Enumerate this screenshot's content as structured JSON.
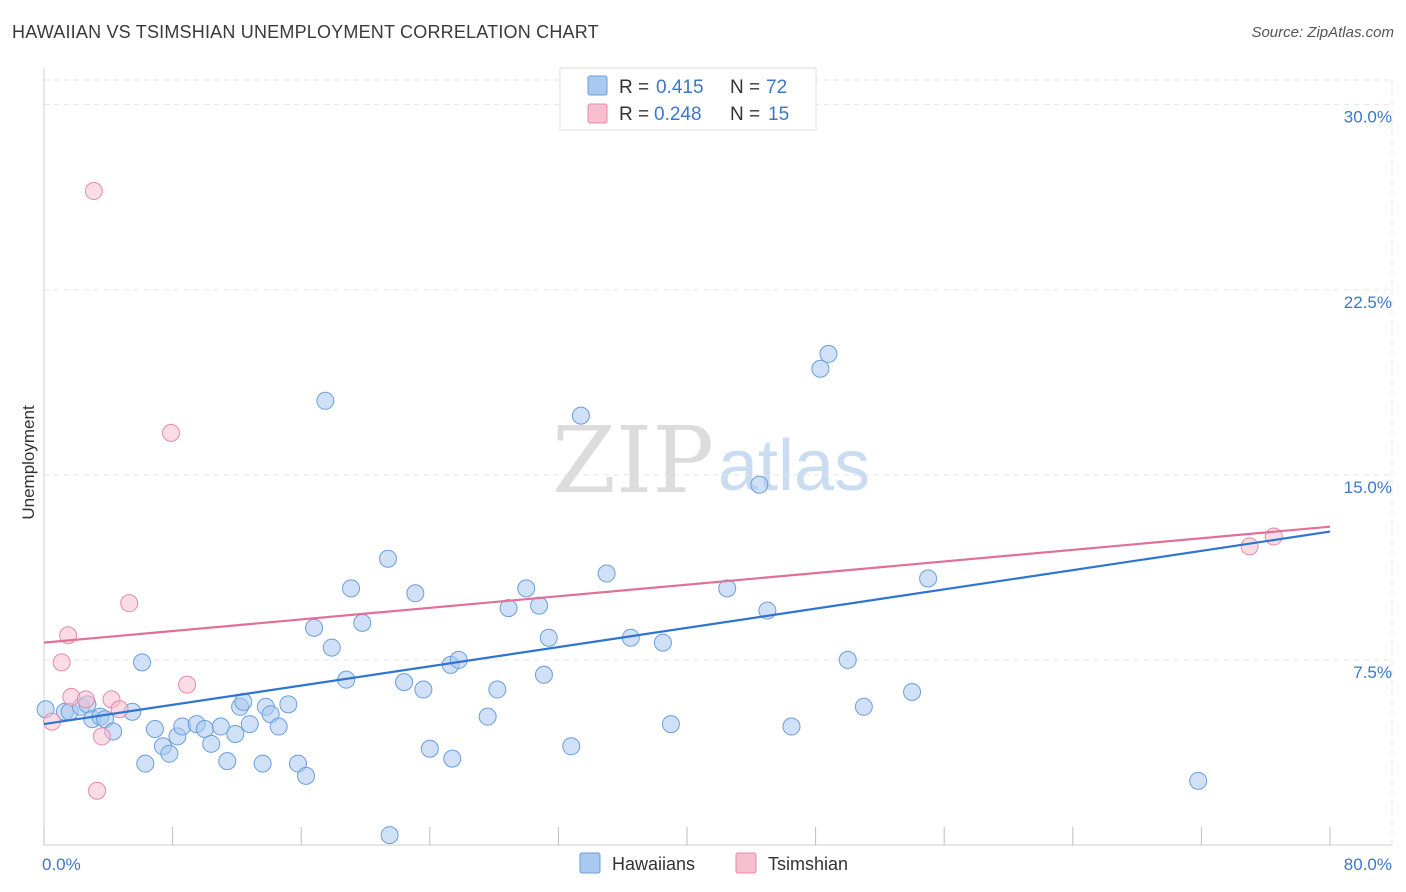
{
  "header": {
    "title": "HAWAIIAN VS TSIMSHIAN UNEMPLOYMENT CORRELATION CHART",
    "source": "Source: ZipAtlas.com"
  },
  "watermark": {
    "zip": "ZIP",
    "atlas": "atlas"
  },
  "colors": {
    "hawaiians_fill": "#a9c9f1",
    "hawaiians_stroke": "#6a9fdc",
    "hawaiians_line": "#2e74d0",
    "tsimshian_fill": "#f7bfd0",
    "tsimshian_stroke": "#e88aa8",
    "tsimshian_line": "#e0709a",
    "tick_text": "#3a78c8",
    "grid": "#e3e3e3"
  },
  "legend": {
    "r_label": "R =",
    "n_label": "N =",
    "rows": [
      {
        "series": "Hawaiians",
        "r": "0.415",
        "n": "72"
      },
      {
        "series": "Tsimshian",
        "r": "0.248",
        "n": "15"
      }
    ]
  },
  "chart_data": {
    "type": "scatter",
    "title": "HAWAIIAN VS TSIMSHIAN UNEMPLOYMENT CORRELATION CHART",
    "xlabel": "",
    "ylabel": "Unemployment",
    "xlim": [
      0,
      80
    ],
    "ylim": [
      0,
      31
    ],
    "x_tick_labels": [
      {
        "value": 0,
        "label": "0.0%"
      },
      {
        "value": 80,
        "label": "80.0%"
      }
    ],
    "y_tick_labels": [
      {
        "value": 7.5,
        "label": "7.5%"
      },
      {
        "value": 15,
        "label": "15.0%"
      },
      {
        "value": 22.5,
        "label": "22.5%"
      },
      {
        "value": 30,
        "label": "30.0%"
      }
    ],
    "x_minor_ticks": [
      0,
      8,
      16,
      24,
      32,
      40,
      48,
      56,
      64,
      72,
      80
    ],
    "series": [
      {
        "name": "Hawaiians",
        "trend": {
          "x0": 0,
          "y0": 4.9,
          "x1": 80,
          "y1": 12.7
        },
        "points": [
          [
            0.1,
            5.5
          ],
          [
            1.3,
            5.4
          ],
          [
            1.6,
            5.4
          ],
          [
            2.3,
            5.6
          ],
          [
            2.7,
            5.7
          ],
          [
            3.0,
            5.1
          ],
          [
            3.5,
            5.2
          ],
          [
            3.8,
            5.1
          ],
          [
            4.3,
            4.6
          ],
          [
            5.5,
            5.4
          ],
          [
            6.1,
            7.4
          ],
          [
            6.3,
            3.3
          ],
          [
            6.9,
            4.7
          ],
          [
            7.4,
            4.0
          ],
          [
            7.8,
            3.7
          ],
          [
            8.3,
            4.4
          ],
          [
            8.6,
            4.8
          ],
          [
            9.5,
            4.9
          ],
          [
            10.0,
            4.7
          ],
          [
            10.4,
            4.1
          ],
          [
            11.0,
            4.8
          ],
          [
            11.4,
            3.4
          ],
          [
            11.9,
            4.5
          ],
          [
            12.2,
            5.6
          ],
          [
            12.4,
            5.8
          ],
          [
            12.8,
            4.9
          ],
          [
            13.6,
            3.3
          ],
          [
            13.8,
            5.6
          ],
          [
            14.1,
            5.3
          ],
          [
            14.6,
            4.8
          ],
          [
            15.2,
            5.7
          ],
          [
            15.8,
            3.3
          ],
          [
            16.3,
            2.8
          ],
          [
            16.8,
            8.8
          ],
          [
            17.5,
            18.0
          ],
          [
            17.9,
            8.0
          ],
          [
            18.8,
            6.7
          ],
          [
            19.1,
            10.4
          ],
          [
            19.8,
            9.0
          ],
          [
            21.4,
            11.6
          ],
          [
            22.4,
            6.6
          ],
          [
            23.1,
            10.2
          ],
          [
            23.6,
            6.3
          ],
          [
            24.0,
            3.9
          ],
          [
            25.3,
            7.3
          ],
          [
            25.4,
            3.5
          ],
          [
            25.8,
            7.5
          ],
          [
            27.6,
            5.2
          ],
          [
            28.2,
            6.3
          ],
          [
            28.9,
            9.6
          ],
          [
            30.0,
            10.4
          ],
          [
            30.8,
            9.7
          ],
          [
            31.1,
            6.9
          ],
          [
            31.4,
            8.4
          ],
          [
            32.8,
            4.0
          ],
          [
            33.4,
            17.4
          ],
          [
            35.0,
            11.0
          ],
          [
            36.5,
            8.4
          ],
          [
            38.5,
            8.2
          ],
          [
            39.0,
            4.9
          ],
          [
            42.5,
            10.4
          ],
          [
            44.5,
            14.6
          ],
          [
            45.0,
            9.5
          ],
          [
            46.5,
            4.8
          ],
          [
            48.3,
            19.3
          ],
          [
            48.8,
            19.9
          ],
          [
            50.0,
            7.5
          ],
          [
            51.0,
            5.6
          ],
          [
            54.0,
            6.2
          ],
          [
            55.0,
            10.8
          ],
          [
            71.8,
            2.6
          ],
          [
            21.5,
            0.4
          ]
        ]
      },
      {
        "name": "Tsimshian",
        "trend": {
          "x0": 0,
          "y0": 8.2,
          "x1": 80,
          "y1": 12.9
        },
        "points": [
          [
            0.5,
            5.0
          ],
          [
            1.1,
            7.4
          ],
          [
            1.5,
            8.5
          ],
          [
            1.7,
            6.0
          ],
          [
            2.6,
            5.9
          ],
          [
            3.1,
            26.5
          ],
          [
            3.3,
            2.2
          ],
          [
            3.6,
            4.4
          ],
          [
            4.2,
            5.9
          ],
          [
            4.7,
            5.5
          ],
          [
            5.3,
            9.8
          ],
          [
            7.9,
            16.7
          ],
          [
            8.9,
            6.5
          ],
          [
            75.0,
            12.1
          ],
          [
            76.5,
            12.5
          ]
        ]
      }
    ]
  },
  "bottom_legend": [
    {
      "series": "Hawaiians",
      "label": "Hawaiians"
    },
    {
      "series": "Tsimshian",
      "label": "Tsimshian"
    }
  ]
}
